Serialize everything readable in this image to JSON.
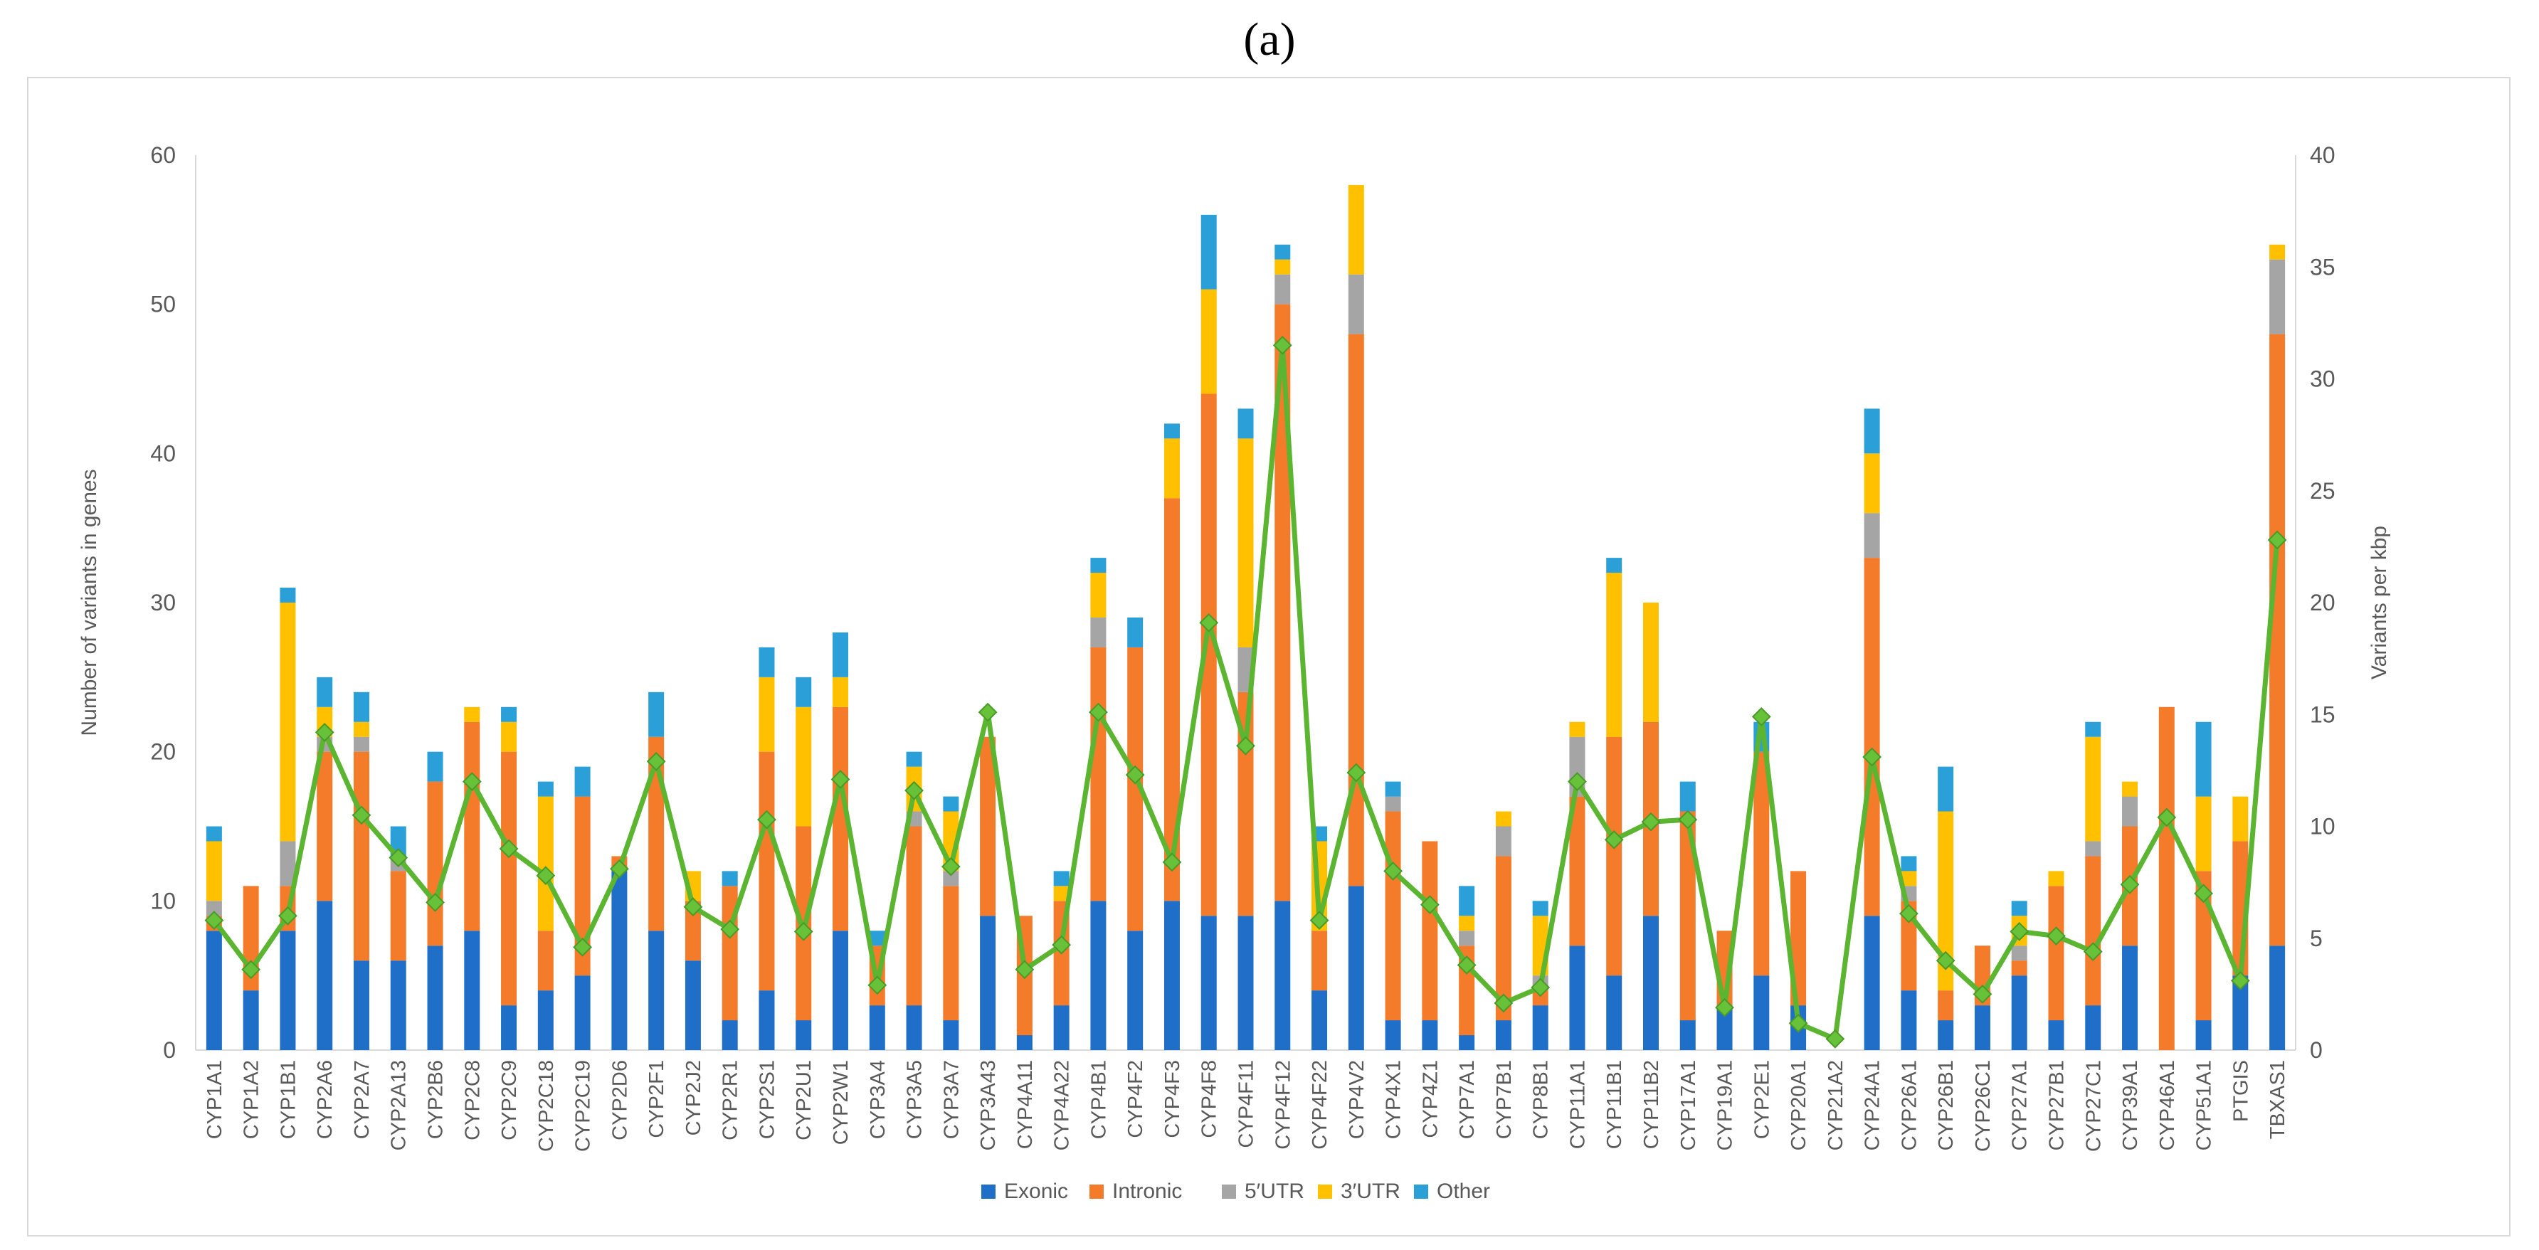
{
  "panel_label": "(a)",
  "chart_data": {
    "type": "bar",
    "stacked": true,
    "title": "",
    "categories": [
      "CYP1A1",
      "CYP1A2",
      "CYP1B1",
      "CYP2A6",
      "CYP2A7",
      "CYP2A13",
      "CYP2B6",
      "CYP2C8",
      "CYP2C9",
      "CYP2C18",
      "CYP2C19",
      "CYP2D6",
      "CYP2F1",
      "CYP2J2",
      "CYP2R1",
      "CYP2S1",
      "CYP2U1",
      "CYP2W1",
      "CYP3A4",
      "CYP3A5",
      "CYP3A7",
      "CYP3A43",
      "CYP4A11",
      "CYP4A22",
      "CYP4B1",
      "CYP4F2",
      "CYP4F3",
      "CYP4F8",
      "CYP4F11",
      "CYP4F12",
      "CYP4F22",
      "CYP4V2",
      "CYP4X1",
      "CYP4Z1",
      "CYP7A1",
      "CYP7B1",
      "CYP8B1",
      "CYP11A1",
      "CYP11B1",
      "CYP11B2",
      "CYP17A1",
      "CYP19A1",
      "CYP2E1",
      "CYP20A1",
      "CYP21A2",
      "CYP24A1",
      "CYP26A1",
      "CYP26B1",
      "CYP26C1",
      "CYP27A1",
      "CYP27B1",
      "CYP27C1",
      "CYP39A1",
      "CYP46A1",
      "CYP51A1",
      "PTGIS",
      "TBXAS1"
    ],
    "series": [
      {
        "name": "Exonic",
        "color": "#1f6fc9",
        "values": [
          8,
          4,
          8,
          10,
          6,
          6,
          7,
          8,
          3,
          4,
          5,
          12,
          8,
          6,
          2,
          4,
          2,
          8,
          3,
          3,
          2,
          9,
          1,
          3,
          10,
          8,
          10,
          9,
          9,
          10,
          4,
          11,
          2,
          2,
          1,
          2,
          3,
          7,
          5,
          9,
          2,
          3,
          5,
          3,
          0,
          9,
          4,
          2,
          3,
          5,
          2,
          3,
          7,
          0,
          2,
          5,
          7
        ]
      },
      {
        "name": "Intronic",
        "color": "#f47b2a",
        "values": [
          1,
          7,
          3,
          10,
          14,
          6,
          11,
          14,
          17,
          4,
          12,
          1,
          13,
          4,
          9,
          16,
          13,
          15,
          4,
          12,
          9,
          12,
          8,
          7,
          17,
          19,
          27,
          35,
          15,
          40,
          4,
          37,
          14,
          12,
          6,
          11,
          1,
          10,
          16,
          13,
          14,
          5,
          15,
          9,
          0,
          24,
          6,
          2,
          4,
          1,
          9,
          10,
          8,
          23,
          10,
          9,
          41
        ]
      },
      {
        "name": "5′UTR",
        "color": "#a5a5a5",
        "values": [
          1,
          0,
          3,
          1,
          1,
          1,
          0,
          0,
          0,
          0,
          0,
          0,
          0,
          0,
          0,
          0,
          0,
          0,
          0,
          1,
          1,
          0,
          0,
          0,
          2,
          0,
          0,
          0,
          3,
          2,
          0,
          4,
          1,
          0,
          1,
          2,
          1,
          4,
          0,
          0,
          0,
          0,
          0,
          0,
          0,
          3,
          1,
          0,
          0,
          1,
          0,
          1,
          2,
          0,
          0,
          0,
          5
        ]
      },
      {
        "name": "3′UTR",
        "color": "#ffc000",
        "values": [
          4,
          0,
          16,
          2,
          1,
          0,
          0,
          1,
          2,
          9,
          0,
          0,
          0,
          2,
          0,
          5,
          8,
          2,
          0,
          3,
          4,
          0,
          0,
          1,
          3,
          0,
          4,
          7,
          14,
          1,
          6,
          6,
          0,
          0,
          1,
          1,
          4,
          1,
          11,
          8,
          0,
          0,
          0,
          0,
          0,
          4,
          1,
          12,
          0,
          2,
          1,
          7,
          1,
          0,
          5,
          3,
          1
        ]
      },
      {
        "name": "Other",
        "color": "#2a9fd8",
        "values": [
          1,
          0,
          1,
          2,
          2,
          2,
          2,
          0,
          1,
          1,
          2,
          0,
          3,
          0,
          1,
          2,
          2,
          3,
          1,
          1,
          1,
          0,
          0,
          1,
          1,
          2,
          1,
          5,
          2,
          1,
          1,
          0,
          1,
          0,
          2,
          0,
          1,
          0,
          1,
          0,
          2,
          0,
          2,
          0,
          0,
          3,
          1,
          3,
          0,
          1,
          0,
          1,
          0,
          0,
          5,
          0,
          0
        ]
      }
    ],
    "line_series": {
      "name": "Variants per kbp",
      "color": "#5cb531",
      "marker_fill": "#67c23a",
      "axis": "right",
      "values": [
        5.8,
        3.6,
        6.0,
        14.2,
        10.5,
        8.6,
        6.6,
        12.0,
        9.0,
        7.8,
        4.6,
        8.1,
        12.9,
        6.4,
        5.4,
        10.3,
        5.3,
        12.1,
        2.9,
        11.6,
        8.2,
        15.1,
        3.6,
        4.7,
        15.1,
        12.3,
        8.4,
        19.1,
        13.6,
        31.5,
        5.8,
        12.4,
        8.0,
        6.5,
        3.8,
        2.1,
        2.8,
        12.0,
        9.4,
        10.2,
        10.3,
        1.9,
        14.9,
        1.2,
        0.5,
        13.1,
        6.1,
        4.0,
        2.5,
        5.3,
        5.1,
        4.4,
        7.4,
        10.4,
        7.0,
        3.1,
        22.8
      ]
    },
    "xlabel": "",
    "ylabel": "Number of variants in genes",
    "y2label": "Variants per kbp",
    "ylim": [
      0,
      60
    ],
    "y2lim": [
      0,
      40
    ],
    "yticks": [
      "0",
      "10",
      "20",
      "30",
      "40",
      "50",
      "60"
    ],
    "y2ticks": [
      "0",
      "5",
      "10",
      "15",
      "20",
      "25",
      "30",
      "35",
      "40"
    ],
    "grid": false,
    "legend_position": "bottom-center"
  }
}
